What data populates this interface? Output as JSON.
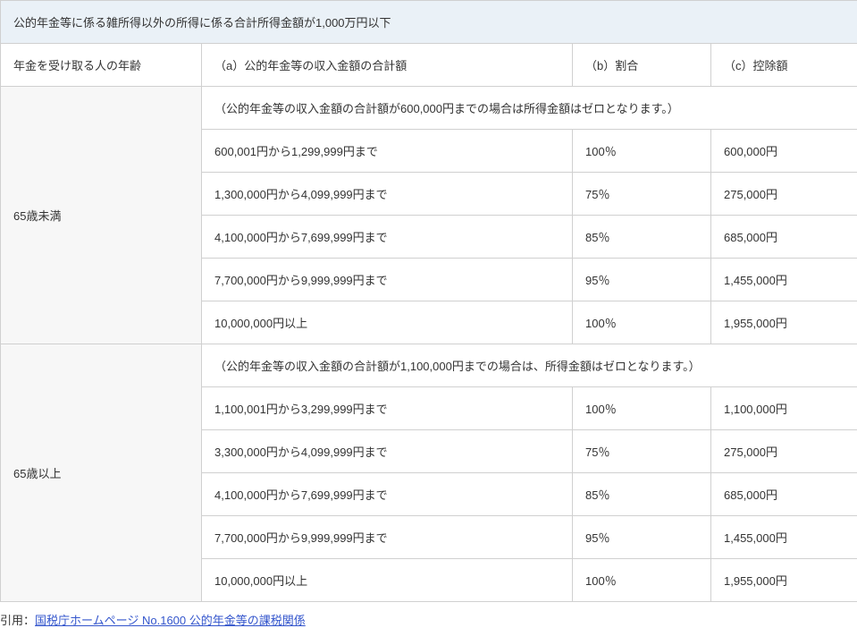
{
  "table": {
    "title": "公的年金等に係る雑所得以外の所得に係る合計所得金額が1,000万円以下",
    "headers": {
      "age": "年金を受け取る人の年齢",
      "col_a": "（a）公的年金等の収入金額の合計額",
      "col_b": "（b）割合",
      "col_c": "（c）控除額"
    },
    "groups": [
      {
        "age_label": "65歳未満",
        "note": "（公的年金等の収入金額の合計額が600,000円までの場合は所得金額はゼロとなります。）",
        "rows": [
          {
            "a": "600,001円から1,299,999円まで",
            "b": "100％",
            "c": "600,000円"
          },
          {
            "a": "1,300,000円から4,099,999円まで",
            "b": "75％",
            "c": "275,000円"
          },
          {
            "a": "4,100,000円から7,699,999円まで",
            "b": "85％",
            "c": "685,000円"
          },
          {
            "a": "7,700,000円から9,999,999円まで",
            "b": "95％",
            "c": "1,455,000円"
          },
          {
            "a": "10,000,000円以上",
            "b": "100％",
            "c": "1,955,000円"
          }
        ]
      },
      {
        "age_label": "65歳以上",
        "note": "（公的年金等の収入金額の合計額が1,100,000円までの場合は、所得金額はゼロとなります。）",
        "rows": [
          {
            "a": "1,100,001円から3,299,999円まで",
            "b": "100％",
            "c": "1,100,000円"
          },
          {
            "a": "3,300,000円から4,099,999円まで",
            "b": "75％",
            "c": "275,000円"
          },
          {
            "a": "4,100,000円から7,699,999円まで",
            "b": "85％",
            "c": "685,000円"
          },
          {
            "a": "7,700,000円から9,999,999円まで",
            "b": "95％",
            "c": "1,455,000円"
          },
          {
            "a": "10,000,000円以上",
            "b": "100％",
            "c": "1,955,000円"
          }
        ]
      }
    ]
  },
  "citation": {
    "prefix": "引用：",
    "link_text": "国税庁ホームページ No.1600 公的年金等の課税関係"
  }
}
